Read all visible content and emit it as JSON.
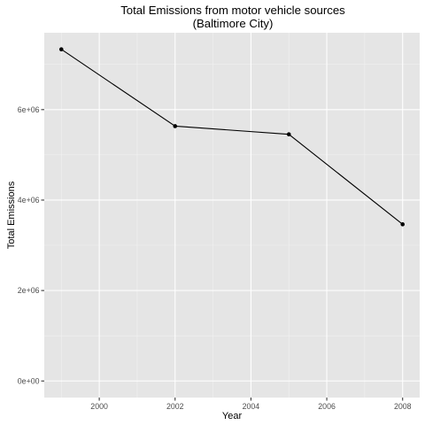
{
  "chart_data": {
    "type": "line",
    "title": "Total Emissions from motor vehicle sources",
    "subtitle": "(Baltimore City)",
    "xlabel": "Year",
    "ylabel": "Total Emissions",
    "x": [
      1999,
      2002,
      2005,
      2008
    ],
    "series": [
      {
        "values": [
          7332967,
          5635224,
          5454167,
          3464206
        ]
      }
    ],
    "xlim": [
      1998.55,
      2008.45
    ],
    "ylim": [
      -366652,
      7699616
    ],
    "x_ticks": [
      2000,
      2002,
      2004,
      2006,
      2008
    ],
    "x_tick_labels": [
      "2000",
      "2002",
      "2004",
      "2006",
      "2008"
    ],
    "y_ticks": [
      0,
      2000000,
      4000000,
      6000000
    ],
    "y_tick_labels": [
      "0e+00",
      "2e+06",
      "4e+06",
      "6e+06"
    ],
    "grid": true,
    "legend": "none",
    "colors": {
      "panel_background": "#e5e5e5",
      "grid": "#ffffff",
      "line": "#000000",
      "point": "#000000"
    }
  }
}
